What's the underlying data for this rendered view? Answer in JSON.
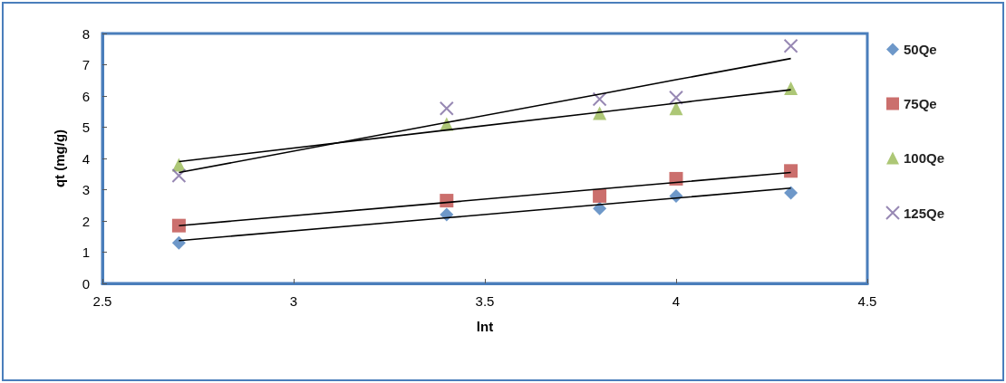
{
  "chart_data": {
    "type": "scatter",
    "xlabel": "lnt",
    "ylabel": "qt (mg/g)",
    "xlim": [
      2.5,
      4.5
    ],
    "xticks": [
      2.5,
      3,
      3.5,
      4,
      4.5
    ],
    "ylim": [
      0,
      8
    ],
    "yticks": [
      0,
      1,
      2,
      3,
      4,
      5,
      6,
      7,
      8
    ],
    "grid": false,
    "legend": "right",
    "x": [
      2.7,
      3.4,
      3.8,
      4.0,
      4.3
    ],
    "series": [
      {
        "name": "50Qe",
        "color": "#4a7ebb",
        "marker": "diamond",
        "values": [
          1.3,
          2.2,
          2.4,
          2.8,
          2.9
        ]
      },
      {
        "name": "75Qe",
        "color": "#be4b48",
        "marker": "square",
        "values": [
          1.85,
          2.65,
          2.8,
          3.35,
          3.6
        ]
      },
      {
        "name": "100Qe",
        "color": "#98b954",
        "marker": "triangle",
        "values": [
          3.8,
          5.1,
          5.45,
          5.6,
          6.25
        ]
      },
      {
        "name": "125Qe",
        "color": "#7d6aa0",
        "marker": "cross",
        "values": [
          3.45,
          5.6,
          5.9,
          5.95,
          7.6
        ]
      },
      {
        "type": "line",
        "color": "#000000",
        "marker": "none",
        "values": [
          1.37,
          2.1,
          2.52,
          2.73,
          3.05
        ]
      },
      {
        "type": "line",
        "color": "#000000",
        "marker": "none",
        "values": [
          1.85,
          2.59,
          3.02,
          3.23,
          3.55
        ]
      },
      {
        "type": "line",
        "color": "#000000",
        "marker": "none",
        "values": [
          3.9,
          4.91,
          5.48,
          5.77,
          6.2
        ]
      },
      {
        "type": "line",
        "color": "#000000",
        "marker": "none",
        "values": [
          3.55,
          5.15,
          6.06,
          6.52,
          7.2
        ]
      }
    ]
  }
}
